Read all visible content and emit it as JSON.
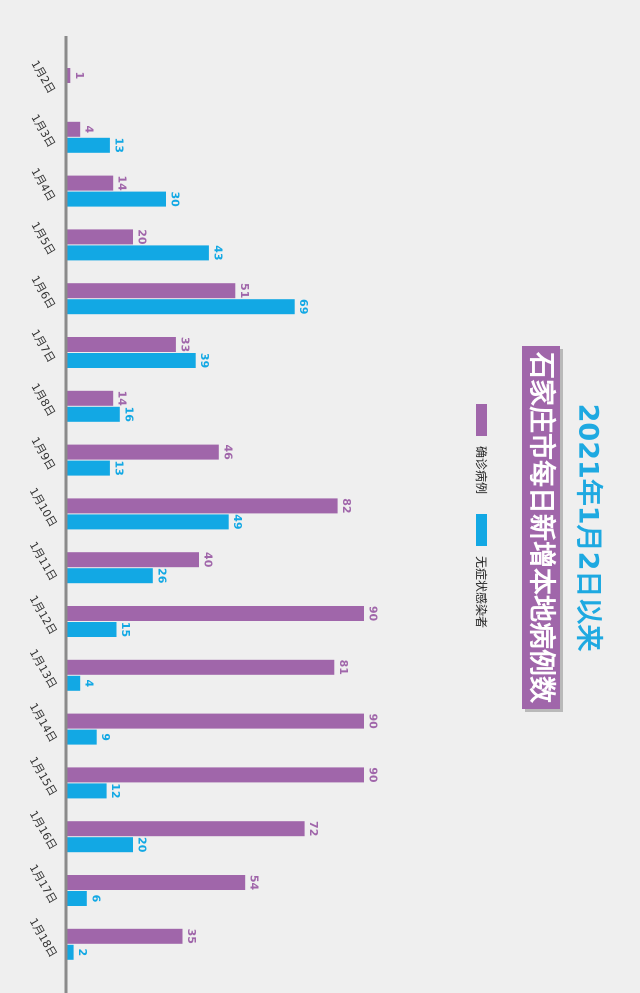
{
  "chart_data": {
    "type": "bar",
    "orientation": "horizontal",
    "title": "2021年1月2日以来",
    "subtitle": "石家庄市每日新增本地病例数",
    "categories": [
      "1月2日",
      "1月3日",
      "1月4日",
      "1月5日",
      "1月6日",
      "1月7日",
      "1月8日",
      "1月9日",
      "1月10日",
      "1月11日",
      "1月12日",
      "1月13日",
      "1月14日",
      "1月15日",
      "1月16日",
      "1月17日",
      "1月18日"
    ],
    "series": [
      {
        "name": "确诊病例",
        "color": "#a066aa",
        "values": [
          1,
          4,
          14,
          20,
          51,
          33,
          14,
          46,
          82,
          40,
          90,
          81,
          90,
          90,
          72,
          54,
          35
        ]
      },
      {
        "name": "无症状感染者",
        "color": "#12a8e4",
        "values": [
          null,
          13,
          30,
          43,
          69,
          39,
          16,
          13,
          49,
          26,
          15,
          4,
          9,
          12,
          20,
          6,
          2
        ]
      }
    ],
    "xlim": [
      0,
      100
    ],
    "legend": "right",
    "grid": false
  }
}
